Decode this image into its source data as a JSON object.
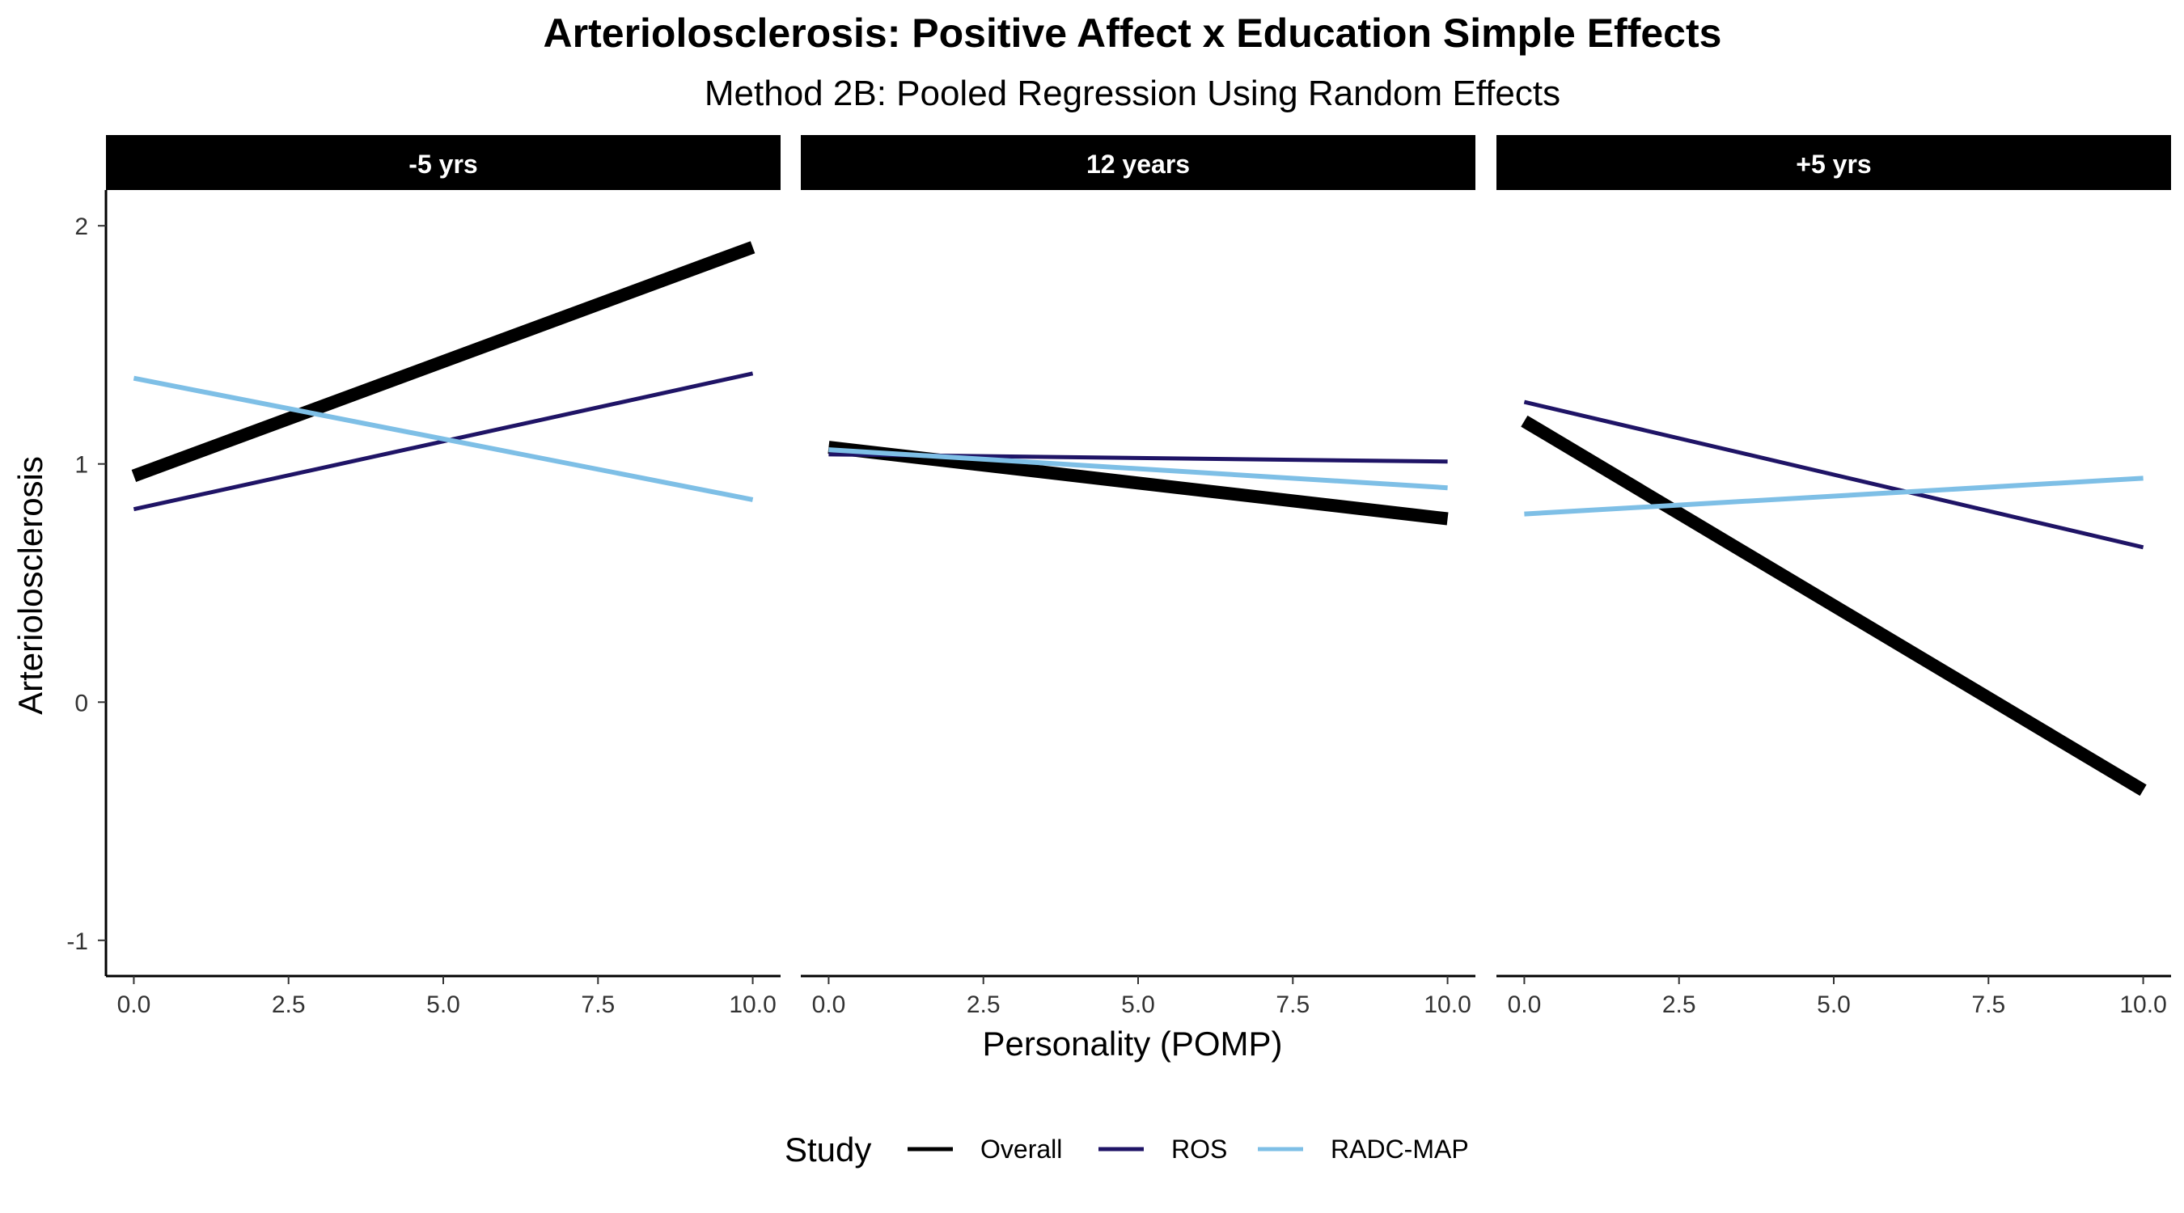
{
  "chart_data": {
    "type": "line",
    "title": "Arteriolosclerosis: Positive Affect x Education Simple Effects",
    "subtitle": "Method 2B: Pooled Regression Using Random Effects",
    "xlabel": "Personality (POMP)",
    "ylabel": "Arteriolosclerosis",
    "xlim": [
      -0.45,
      10.45
    ],
    "ylim": [
      -1.15,
      2.15
    ],
    "x_ticks": [
      0,
      2.5,
      5,
      7.5,
      10
    ],
    "x_tick_labels": [
      "0.0",
      "2.5",
      "5.0",
      "7.5",
      "10.0"
    ],
    "y_ticks": [
      -1,
      0,
      1,
      2
    ],
    "y_tick_labels": [
      "-1",
      "0",
      "1",
      "2"
    ],
    "grid": false,
    "legend": {
      "title": "Study",
      "position": "bottom",
      "entries": [
        {
          "name": "Overall",
          "color": "#000000"
        },
        {
          "name": "ROS",
          "color": "#1f1466"
        },
        {
          "name": "RADC-MAP",
          "color": "#7ebfe6"
        }
      ]
    },
    "panels": [
      {
        "label": "-5 yrs",
        "series": [
          {
            "name": "Overall",
            "x": [
              0,
              10
            ],
            "y": [
              0.95,
              1.91
            ]
          },
          {
            "name": "ROS",
            "x": [
              0,
              10
            ],
            "y": [
              0.81,
              1.38
            ]
          },
          {
            "name": "RADC-MAP",
            "x": [
              0,
              10
            ],
            "y": [
              1.36,
              0.85
            ]
          }
        ]
      },
      {
        "label": "12 years",
        "series": [
          {
            "name": "Overall",
            "x": [
              0,
              10
            ],
            "y": [
              1.07,
              0.77
            ]
          },
          {
            "name": "ROS",
            "x": [
              0,
              10
            ],
            "y": [
              1.04,
              1.01
            ]
          },
          {
            "name": "RADC-MAP",
            "x": [
              0,
              10
            ],
            "y": [
              1.06,
              0.9
            ]
          }
        ]
      },
      {
        "label": "+5 yrs",
        "series": [
          {
            "name": "Overall",
            "x": [
              0,
              10
            ],
            "y": [
              1.18,
              -0.37
            ]
          },
          {
            "name": "ROS",
            "x": [
              0,
              10
            ],
            "y": [
              1.26,
              0.65
            ]
          },
          {
            "name": "RADC-MAP",
            "x": [
              0,
              10
            ],
            "y": [
              0.79,
              0.94
            ]
          }
        ]
      }
    ]
  }
}
